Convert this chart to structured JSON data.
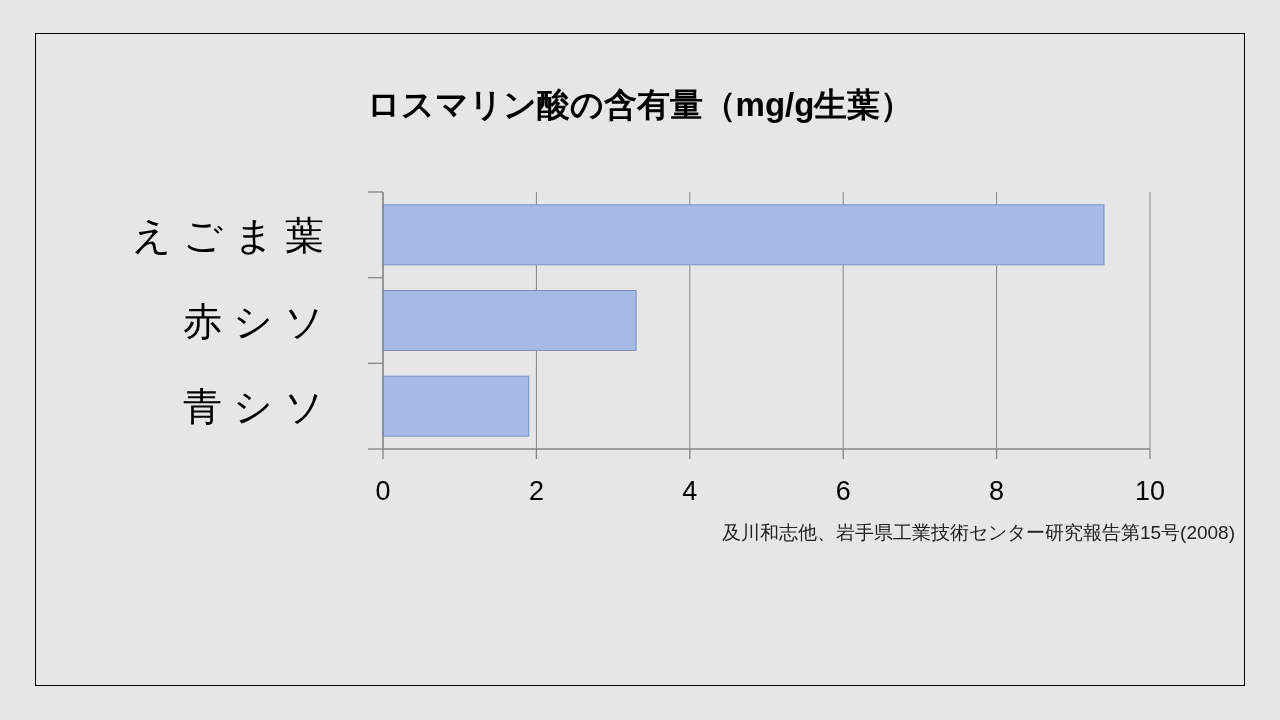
{
  "chart_data": {
    "type": "bar",
    "orientation": "horizontal",
    "title": "ロスマリン酸の含有量（mg/g生葉）",
    "categories": [
      "えごま葉",
      "赤シソ",
      "青シソ"
    ],
    "values": [
      9.4,
      3.3,
      1.9
    ],
    "color": "#a6bae5",
    "xlim": [
      0,
      10
    ],
    "xticks": [
      0,
      2,
      4,
      6,
      8,
      10
    ],
    "grid": "x",
    "annotations": [
      "及川和志他、岩手県工業技術センター研究報告第15号(2008)"
    ]
  }
}
